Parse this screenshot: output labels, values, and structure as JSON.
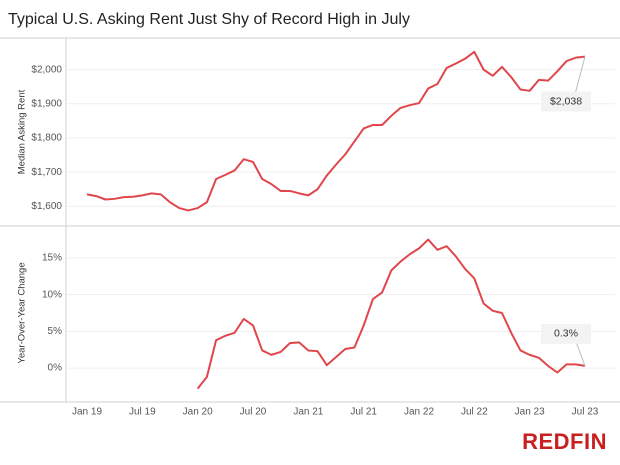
{
  "chart_data": [
    {
      "type": "line",
      "title": "Typical U.S. Asking Rent Just Shy of Record High in July",
      "y_label": "Median Asking Rent",
      "color": "#e0474c",
      "values": [
        1635,
        1630,
        1620,
        1622,
        1627,
        1628,
        1632,
        1638,
        1635,
        1612,
        1595,
        1588,
        1595,
        1612,
        1680,
        1692,
        1705,
        1738,
        1730,
        1680,
        1665,
        1645,
        1645,
        1638,
        1632,
        1650,
        1690,
        1722,
        1752,
        1790,
        1828,
        1838,
        1838,
        1865,
        1888,
        1896,
        1902,
        1945,
        1958,
        2005,
        2018,
        2032,
        2052,
        2000,
        1982,
        2008,
        1978,
        1942,
        1938,
        1970,
        1968,
        1995,
        2025,
        2035,
        2038
      ],
      "value_labels": [
        null,
        null,
        null,
        null,
        null,
        null,
        null,
        null,
        null,
        null,
        null,
        null,
        null,
        null,
        null,
        null,
        null,
        null,
        null,
        null,
        null,
        null,
        null,
        null,
        null,
        null,
        null,
        null,
        null,
        null,
        null,
        null,
        null,
        null,
        null,
        null,
        null,
        null,
        null,
        null,
        null,
        null,
        null,
        null,
        null,
        null,
        null,
        null,
        null,
        null,
        null,
        null,
        null,
        null,
        "$2,038"
      ],
      "ylim": [
        1560,
        2075
      ],
      "yticks": [
        {
          "value": 1600,
          "label": "$1,600"
        },
        {
          "value": 1700,
          "label": "$1,700"
        },
        {
          "value": 1800,
          "label": "$1,800"
        },
        {
          "value": 1900,
          "label": "$1,900"
        },
        {
          "value": 2000,
          "label": "$2,000"
        }
      ],
      "grid": true
    },
    {
      "type": "line",
      "y_label": "Year-Over-Year Change",
      "color": "#e0474c",
      "categories": [
        "Jan 19",
        null,
        null,
        null,
        null,
        null,
        "Jul 19",
        null,
        null,
        null,
        null,
        null,
        "Jan 20",
        null,
        null,
        null,
        null,
        null,
        "Jul 20",
        null,
        null,
        null,
        null,
        null,
        "Jan 21",
        null,
        null,
        null,
        null,
        null,
        "Jul 21",
        null,
        null,
        null,
        null,
        null,
        "Jan 22",
        null,
        null,
        null,
        null,
        null,
        "Jul 22",
        null,
        null,
        null,
        null,
        null,
        "Jan 23",
        null,
        null,
        null,
        null,
        null,
        "Jul 23"
      ],
      "values": [
        null,
        null,
        null,
        null,
        null,
        null,
        null,
        null,
        null,
        null,
        null,
        null,
        -2.8,
        -1.2,
        3.8,
        4.4,
        4.8,
        6.7,
        5.8,
        2.4,
        1.8,
        2.2,
        3.4,
        3.5,
        2.4,
        2.3,
        0.4,
        1.5,
        2.6,
        2.8,
        5.8,
        9.4,
        10.3,
        13.3,
        14.5,
        15.5,
        16.3,
        17.5,
        16.1,
        16.6,
        15.2,
        13.5,
        12.2,
        8.8,
        7.8,
        7.5,
        4.8,
        2.4,
        1.8,
        1.4,
        0.3,
        -0.6,
        0.5,
        0.5,
        0.3
      ],
      "value_labels": [
        null,
        null,
        null,
        null,
        null,
        null,
        null,
        null,
        null,
        null,
        null,
        null,
        null,
        null,
        null,
        null,
        null,
        null,
        null,
        null,
        null,
        null,
        null,
        null,
        null,
        null,
        null,
        null,
        null,
        null,
        null,
        null,
        null,
        null,
        null,
        null,
        null,
        null,
        null,
        null,
        null,
        null,
        null,
        null,
        null,
        null,
        null,
        null,
        null,
        null,
        null,
        null,
        null,
        null,
        "0.3%"
      ],
      "ylim": [
        -3.8,
        18.8
      ],
      "yticks": [
        {
          "value": 0,
          "label": "0%"
        },
        {
          "value": 5,
          "label": "5%"
        },
        {
          "value": 10,
          "label": "10%"
        },
        {
          "value": 15,
          "label": "15%"
        }
      ],
      "grid": true
    }
  ],
  "logo": "REDFIN"
}
